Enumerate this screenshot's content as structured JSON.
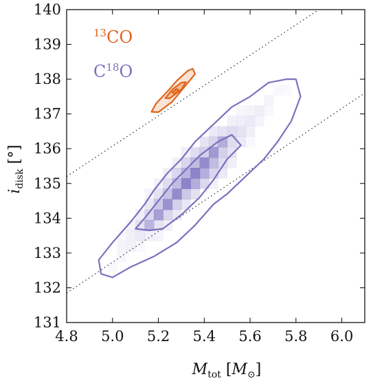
{
  "chart_data": {
    "type": "heatmap",
    "xlabel": "M_tot [M_⊙]",
    "ylabel": "i_disk [°]",
    "xlim": [
      4.8,
      6.1
    ],
    "ylim": [
      131,
      140
    ],
    "xticks": [
      4.8,
      5.0,
      5.2,
      5.4,
      5.6,
      5.8,
      6.0
    ],
    "xtick_labels": [
      "4.8",
      "5.0",
      "5.2",
      "5.4",
      "5.6",
      "5.8",
      "6.0"
    ],
    "yticks": [
      131,
      132,
      133,
      134,
      135,
      136,
      137,
      138,
      139,
      140
    ],
    "ytick_labels": [
      "131",
      "132",
      "133",
      "134",
      "135",
      "136",
      "137",
      "138",
      "139",
      "140"
    ],
    "grid": false,
    "legend_placement": "top-left",
    "series": [
      {
        "name": "13CO",
        "color": "#e0651a",
        "contours": [
          [
            [
              5.17,
              137.06
            ],
            [
              5.19,
              137.3
            ],
            [
              5.24,
              137.65
            ],
            [
              5.28,
              137.95
            ],
            [
              5.33,
              138.25
            ],
            [
              5.35,
              138.3
            ],
            [
              5.36,
              138.15
            ],
            [
              5.31,
              137.75
            ],
            [
              5.26,
              137.35
            ],
            [
              5.2,
              137.05
            ]
          ],
          [
            [
              5.23,
              137.45
            ],
            [
              5.26,
              137.7
            ],
            [
              5.3,
              137.9
            ],
            [
              5.32,
              137.92
            ],
            [
              5.3,
              137.7
            ],
            [
              5.25,
              137.45
            ]
          ],
          [
            [
              5.26,
              137.62
            ],
            [
              5.28,
              137.72
            ],
            [
              5.29,
              137.68
            ],
            [
              5.27,
              137.58
            ]
          ]
        ]
      },
      {
        "name": "C18O",
        "color": "#7a70bf",
        "heatmap": {
          "bin_width": 0.04,
          "bin_height": 0.3,
          "cells": [
            [
              5.36,
              135.3,
              0.9
            ],
            [
              5.32,
              135.0,
              0.9
            ],
            [
              5.4,
              135.6,
              0.85
            ],
            [
              5.28,
              134.7,
              0.85
            ],
            [
              5.24,
              134.4,
              0.8
            ],
            [
              5.44,
              135.9,
              0.75
            ],
            [
              5.2,
              134.1,
              0.7
            ],
            [
              5.48,
              136.2,
              0.6
            ],
            [
              5.16,
              133.8,
              0.55
            ],
            [
              5.4,
              135.3,
              0.6
            ],
            [
              5.32,
              135.3,
              0.55
            ],
            [
              5.36,
              135.0,
              0.6
            ],
            [
              5.28,
              135.0,
              0.5
            ],
            [
              5.36,
              135.6,
              0.5
            ],
            [
              5.44,
              135.6,
              0.5
            ],
            [
              5.24,
              134.7,
              0.45
            ],
            [
              5.32,
              134.7,
              0.4
            ],
            [
              5.2,
              134.4,
              0.4
            ],
            [
              5.28,
              134.4,
              0.35
            ],
            [
              5.4,
              135.9,
              0.35
            ],
            [
              5.48,
              135.9,
              0.35
            ],
            [
              5.16,
              134.1,
              0.3
            ],
            [
              5.24,
              134.1,
              0.3
            ],
            [
              5.44,
              136.2,
              0.3
            ],
            [
              5.52,
              136.2,
              0.25
            ],
            [
              5.12,
              133.8,
              0.22
            ],
            [
              5.2,
              133.8,
              0.2
            ],
            [
              5.12,
              133.5,
              0.15
            ],
            [
              5.08,
              133.2,
              0.1
            ],
            [
              5.04,
              132.9,
              0.06
            ],
            [
              5.0,
              132.6,
              0.05
            ],
            [
              5.04,
              133.2,
              0.08
            ],
            [
              5.08,
              133.5,
              0.1
            ],
            [
              5.56,
              136.5,
              0.2
            ],
            [
              5.52,
              136.5,
              0.25
            ],
            [
              5.6,
              136.8,
              0.15
            ],
            [
              5.64,
              137.1,
              0.12
            ],
            [
              5.68,
              137.4,
              0.08
            ],
            [
              5.72,
              137.7,
              0.05
            ],
            [
              5.76,
              137.7,
              0.04
            ],
            [
              5.48,
              136.5,
              0.2
            ],
            [
              5.56,
              136.8,
              0.12
            ],
            [
              5.6,
              137.1,
              0.08
            ],
            [
              5.44,
              135.3,
              0.3
            ],
            [
              5.48,
              135.6,
              0.25
            ],
            [
              5.52,
              135.9,
              0.2
            ],
            [
              5.56,
              136.2,
              0.15
            ],
            [
              5.6,
              136.5,
              0.12
            ],
            [
              5.28,
              135.3,
              0.3
            ],
            [
              5.24,
              135.0,
              0.25
            ],
            [
              5.2,
              134.7,
              0.22
            ],
            [
              5.16,
              134.4,
              0.18
            ],
            [
              5.12,
              134.1,
              0.12
            ],
            [
              5.36,
              135.9,
              0.25
            ],
            [
              5.4,
              136.2,
              0.2
            ],
            [
              5.44,
              136.5,
              0.15
            ],
            [
              5.32,
              135.6,
              0.3
            ],
            [
              5.32,
              134.4,
              0.18
            ],
            [
              5.36,
              134.7,
              0.22
            ],
            [
              5.4,
              135.0,
              0.28
            ],
            [
              5.28,
              134.1,
              0.15
            ],
            [
              5.24,
              133.8,
              0.1
            ],
            [
              5.2,
              133.5,
              0.08
            ],
            [
              5.48,
              135.3,
              0.15
            ],
            [
              5.52,
              135.6,
              0.12
            ],
            [
              5.44,
              135.0,
              0.1
            ],
            [
              5.2,
              135.0,
              0.1
            ],
            [
              5.16,
              134.7,
              0.08
            ],
            [
              5.24,
              135.3,
              0.12
            ],
            [
              5.28,
              135.6,
              0.12
            ],
            [
              5.32,
              135.9,
              0.12
            ],
            [
              5.08,
              133.8,
              0.08
            ],
            [
              5.04,
              133.5,
              0.05
            ],
            [
              5.12,
              133.2,
              0.05
            ],
            [
              5.16,
              133.5,
              0.1
            ],
            [
              5.64,
              136.8,
              0.08
            ],
            [
              5.68,
              137.1,
              0.05
            ],
            [
              5.6,
              136.2,
              0.05
            ],
            [
              5.52,
              136.8,
              0.1
            ],
            [
              5.56,
              137.1,
              0.06
            ]
          ]
        },
        "contours": [
          [
            [
              4.94,
              132.8
            ],
            [
              5.0,
              133.3
            ],
            [
              5.08,
              133.9
            ],
            [
              5.14,
              134.4
            ],
            [
              5.18,
              134.8
            ],
            [
              5.24,
              135.3
            ],
            [
              5.3,
              135.7
            ],
            [
              5.36,
              136.2
            ],
            [
              5.44,
              136.7
            ],
            [
              5.52,
              137.2
            ],
            [
              5.6,
              137.5
            ],
            [
              5.68,
              137.9
            ],
            [
              5.76,
              138.0
            ],
            [
              5.8,
              138.0
            ],
            [
              5.82,
              137.5
            ],
            [
              5.78,
              136.8
            ],
            [
              5.72,
              136.2
            ],
            [
              5.66,
              135.7
            ],
            [
              5.58,
              135.2
            ],
            [
              5.5,
              134.7
            ],
            [
              5.44,
              134.4
            ],
            [
              5.36,
              133.8
            ],
            [
              5.28,
              133.3
            ],
            [
              5.18,
              132.9
            ],
            [
              5.08,
              132.6
            ],
            [
              5.0,
              132.3
            ],
            [
              4.95,
              132.4
            ]
          ],
          [
            [
              5.1,
              133.7
            ],
            [
              5.14,
              134.0
            ],
            [
              5.2,
              134.5
            ],
            [
              5.26,
              135.0
            ],
            [
              5.32,
              135.4
            ],
            [
              5.38,
              135.8
            ],
            [
              5.46,
              136.2
            ],
            [
              5.52,
              136.4
            ],
            [
              5.56,
              136.1
            ],
            [
              5.5,
              135.7
            ],
            [
              5.44,
              135.1
            ],
            [
              5.38,
              134.6
            ],
            [
              5.3,
              134.1
            ],
            [
              5.22,
              133.7
            ],
            [
              5.16,
              133.65
            ]
          ]
        ]
      }
    ],
    "reference_lines": [
      {
        "style": "dotted",
        "points": [
          [
            4.8,
            135.2
          ],
          [
            5.9,
            140.0
          ]
        ]
      },
      {
        "style": "dotted",
        "points": [
          [
            4.8,
            131.85
          ],
          [
            6.1,
            137.6
          ]
        ]
      }
    ],
    "legend": [
      {
        "label_sup": "13",
        "label_main": "CO",
        "sup_first": true,
        "color": "#e0651a"
      },
      {
        "label_main": "C",
        "label_sup": "18",
        "label_tail": "O",
        "sup_first": false,
        "color": "#7a70bf"
      }
    ]
  }
}
